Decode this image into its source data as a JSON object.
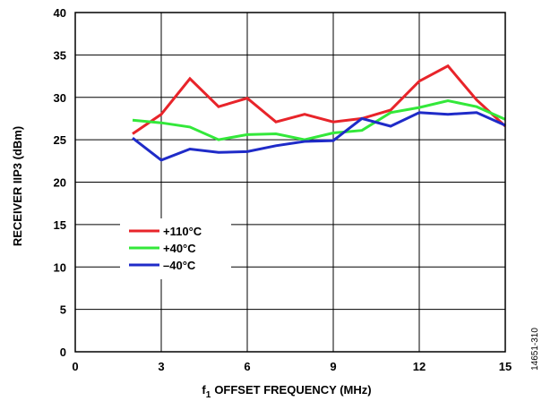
{
  "chart_data": {
    "type": "line",
    "xlabel": "OFFSET FREQUENCY (MHz)",
    "xlabel_prefix": "f",
    "xlabel_subscript": "1",
    "ylabel": "RECEIVER IIP3 (dBm)",
    "xlim": [
      0,
      15
    ],
    "ylim": [
      0,
      40
    ],
    "x_ticks": [
      0,
      3,
      6,
      9,
      12,
      15
    ],
    "y_ticks": [
      0,
      5,
      10,
      15,
      20,
      25,
      30,
      35,
      40
    ],
    "grid": true,
    "legend_position": "lower-left",
    "figure_id": "14651-310",
    "series": [
      {
        "name": "+110°C",
        "color": "#e8242a",
        "x": [
          2,
          3,
          4,
          5,
          6,
          7,
          8,
          9,
          10,
          11,
          12,
          13,
          14,
          15
        ],
        "y": [
          25.7,
          28.0,
          32.2,
          28.9,
          29.9,
          27.1,
          28.0,
          27.1,
          27.5,
          28.5,
          31.9,
          33.7,
          29.7,
          26.6
        ]
      },
      {
        "name": "+40°C",
        "color": "#33e83a",
        "x": [
          2,
          3,
          4,
          5,
          6,
          7,
          8,
          9,
          10,
          11,
          12,
          13,
          14,
          15
        ],
        "y": [
          27.3,
          27.0,
          26.5,
          25.0,
          25.6,
          25.7,
          25.0,
          25.8,
          26.1,
          28.2,
          28.8,
          29.6,
          28.9,
          27.4
        ]
      },
      {
        "name": "–40°C",
        "color": "#1f2bc8",
        "x": [
          2,
          3,
          4,
          5,
          6,
          7,
          8,
          9,
          10,
          11,
          12,
          13,
          14,
          15
        ],
        "y": [
          25.2,
          22.6,
          23.9,
          23.5,
          23.6,
          24.3,
          24.8,
          24.9,
          27.5,
          26.6,
          28.2,
          28.0,
          28.2,
          26.7
        ]
      }
    ]
  }
}
